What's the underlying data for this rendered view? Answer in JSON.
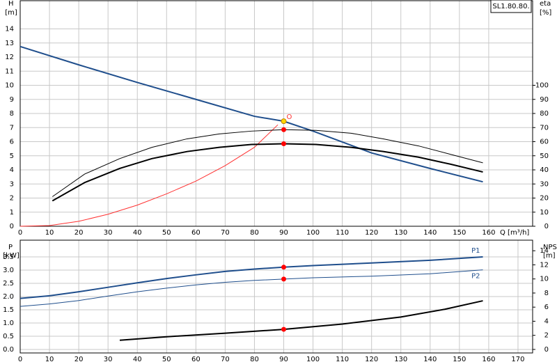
{
  "chart_data": [
    {
      "type": "line",
      "title": "SL1.80.80.",
      "xlabel": "Q [m³/h]",
      "ylabel": "H",
      "yunit": "[m]",
      "y2label": "eta",
      "y2unit": "[%]",
      "grid": true,
      "xlim": [
        0,
        175
      ],
      "xticks": [
        0,
        10,
        20,
        30,
        40,
        50,
        60,
        70,
        80,
        90,
        100,
        110,
        120,
        130,
        140,
        150,
        160
      ],
      "ylim": [
        0,
        16
      ],
      "yticks": [
        0,
        1,
        2,
        3,
        4,
        5,
        6,
        7,
        8,
        9,
        10,
        11,
        12,
        13,
        14
      ],
      "y2lim": [
        0,
        160
      ],
      "y2ticks": [
        0,
        10,
        20,
        30,
        40,
        50,
        60,
        70,
        80,
        90,
        100
      ],
      "series": [
        {
          "color": "#1f4e8c",
          "width": 2,
          "x": [
            0,
            20,
            40,
            60,
            80,
            90,
            100,
            120,
            140,
            158
          ],
          "values": [
            12.75,
            11.45,
            10.2,
            9.0,
            7.8,
            7.45,
            6.75,
            5.2,
            4.1,
            3.15
          ]
        },
        {
          "color": "#ff3030",
          "width": 1,
          "x": [
            0,
            10,
            20,
            30,
            40,
            50,
            60,
            70,
            80,
            88
          ],
          "values": [
            0,
            0.05,
            0.35,
            0.85,
            1.5,
            2.3,
            3.2,
            4.3,
            5.6,
            7.2
          ]
        },
        {
          "color": "#000000",
          "width": 1,
          "axis": "y2",
          "x": [
            11,
            22,
            34,
            45,
            57,
            68,
            79,
            90,
            101,
            113,
            124,
            136,
            147,
            158
          ],
          "values": [
            21,
            37,
            48,
            56,
            62,
            65.5,
            67.5,
            68.5,
            68,
            66,
            62,
            57,
            51,
            45
          ]
        },
        {
          "color": "#000000",
          "width": 2,
          "axis": "y2",
          "x": [
            11,
            22,
            34,
            45,
            57,
            68,
            79,
            90,
            101,
            113,
            124,
            136,
            147,
            158
          ],
          "values": [
            18,
            31,
            41,
            48,
            53,
            56,
            58,
            58.5,
            58,
            56,
            53,
            49,
            44,
            38.5
          ]
        }
      ],
      "points": [
        {
          "x": 90,
          "y": 7.45,
          "color": "#ffd700",
          "label": "O"
        },
        {
          "x": 90,
          "y": 68.5,
          "axis": "y2",
          "color": "#ff0000"
        },
        {
          "x": 90,
          "y": 58.5,
          "axis": "y2",
          "color": "#ff0000"
        }
      ]
    },
    {
      "type": "line",
      "ylabel": "P",
      "yunit": "[kW]",
      "y2label": "NPSH",
      "y2unit": "[m]",
      "grid": true,
      "xlim": [
        0,
        175
      ],
      "xticks": [
        0,
        10,
        20,
        30,
        40,
        50,
        60,
        70,
        80,
        90,
        100,
        110,
        120,
        130,
        140,
        150,
        160,
        170
      ],
      "ylim": [
        -0.13,
        4.13
      ],
      "yticks": [
        {
          "value": 0,
          "label": "0.0"
        },
        0.5,
        {
          "value": 1,
          "label": "1.0"
        },
        1.5,
        {
          "value": 2,
          "label": "2.0"
        },
        2.5,
        {
          "value": 3,
          "label": "3.0"
        },
        3.5
      ],
      "y2lim": [
        -0.5,
        15.5
      ],
      "y2ticks": [
        0,
        2,
        4,
        6,
        8,
        10,
        12,
        14
      ],
      "series": [
        {
          "name": "P1",
          "label_pos": "above",
          "color": "#1f4e8c",
          "width": 2,
          "x": [
            0,
            10,
            20,
            30,
            40,
            50,
            60,
            70,
            80,
            90,
            100,
            120,
            140,
            158
          ],
          "values": [
            1.93,
            2.03,
            2.18,
            2.35,
            2.52,
            2.68,
            2.82,
            2.95,
            3.04,
            3.11,
            3.17,
            3.27,
            3.37,
            3.5
          ]
        },
        {
          "name": "P2",
          "label_pos": "below",
          "color": "#1f4e8c",
          "width": 1,
          "x": [
            0,
            10,
            20,
            30,
            40,
            50,
            60,
            70,
            80,
            90,
            100,
            120,
            140,
            158
          ],
          "values": [
            1.63,
            1.72,
            1.85,
            2.02,
            2.18,
            2.32,
            2.44,
            2.54,
            2.61,
            2.66,
            2.71,
            2.77,
            2.86,
            3.01
          ]
        },
        {
          "color": "#000000",
          "width": 2,
          "axis": "y2",
          "x": [
            34,
            50,
            70,
            90,
            110,
            130,
            145,
            158
          ],
          "values": [
            1.3,
            1.8,
            2.3,
            2.85,
            3.6,
            4.6,
            5.7,
            6.9
          ]
        }
      ],
      "points": [
        {
          "x": 90,
          "y": 3.11,
          "color": "#ff0000"
        },
        {
          "x": 90,
          "y": 2.66,
          "color": "#ff0000"
        },
        {
          "x": 90,
          "y": 2.85,
          "axis": "y2",
          "color": "#ff0000"
        }
      ]
    }
  ]
}
